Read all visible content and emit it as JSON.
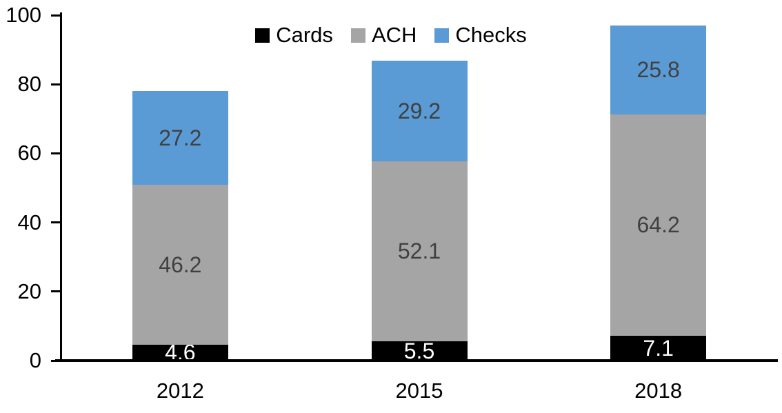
{
  "chart_data": {
    "type": "bar",
    "stacked": true,
    "categories": [
      "2012",
      "2015",
      "2018"
    ],
    "series": [
      {
        "name": "Cards",
        "color": "#000000",
        "label_color": "#ffffff",
        "values": [
          4.6,
          5.5,
          7.1
        ]
      },
      {
        "name": "ACH",
        "color": "#a5a5a5",
        "label_color": "#404040",
        "values": [
          46.2,
          52.1,
          64.2
        ]
      },
      {
        "name": "Checks",
        "color": "#5b9bd5",
        "label_color": "#404040",
        "values": [
          27.2,
          29.2,
          25.8
        ]
      }
    ],
    "totals": [
      78.0,
      86.8,
      97.1
    ],
    "ylim": [
      0,
      100
    ],
    "yticks": [
      0,
      20,
      40,
      60,
      80,
      100
    ],
    "legend_position": "top",
    "grid": false,
    "axis_color": "#000000",
    "tick_label_color": "#000000",
    "data_labels_decimals": 1
  }
}
